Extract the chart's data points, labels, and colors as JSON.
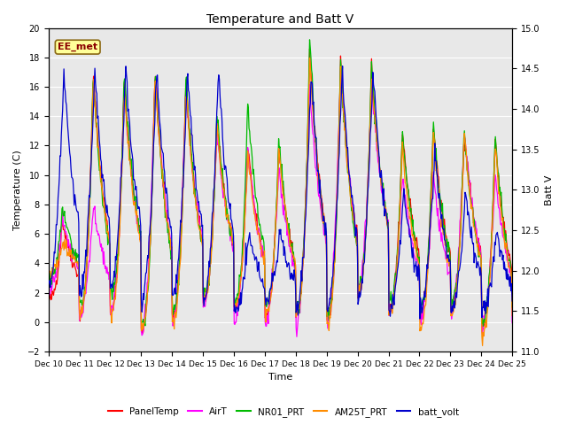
{
  "title": "Temperature and Batt V",
  "xlabel": "Time",
  "ylabel_left": "Temperature (C)",
  "ylabel_right": "Batt V",
  "ylim_left": [
    -2,
    20
  ],
  "ylim_right": [
    11.0,
    15.0
  ],
  "yticks_left": [
    -2,
    0,
    2,
    4,
    6,
    8,
    10,
    12,
    14,
    16,
    18,
    20
  ],
  "yticks_right": [
    11.0,
    11.5,
    12.0,
    12.5,
    13.0,
    13.5,
    14.0,
    14.5,
    15.0
  ],
  "xtick_labels": [
    "Dec 10",
    "Dec 11",
    "Dec 12",
    "Dec 13",
    "Dec 14",
    "Dec 15",
    "Dec 16",
    "Dec 17",
    "Dec 18",
    "Dec 19",
    "Dec 20",
    "Dec 21",
    "Dec 22",
    "Dec 23",
    "Dec 24",
    "Dec 25"
  ],
  "annotation_text": "EE_met",
  "annotation_color": "#8B0000",
  "annotation_bg": "#FFFF99",
  "annotation_border": "#8B6914",
  "plot_bg_color": "#E8E8E8",
  "grid_color": "#FFFFFF",
  "series_PanelTemp_color": "#FF0000",
  "series_AirT_color": "#FF00FF",
  "series_NR01_PRT_color": "#00BB00",
  "series_AM25T_PRT_color": "#FF8C00",
  "series_batt_volt_color": "#0000CC",
  "lw": 0.9,
  "legend_labels": [
    "PanelTemp",
    "AirT",
    "NR01_PRT",
    "AM25T_PRT",
    "batt_volt"
  ]
}
